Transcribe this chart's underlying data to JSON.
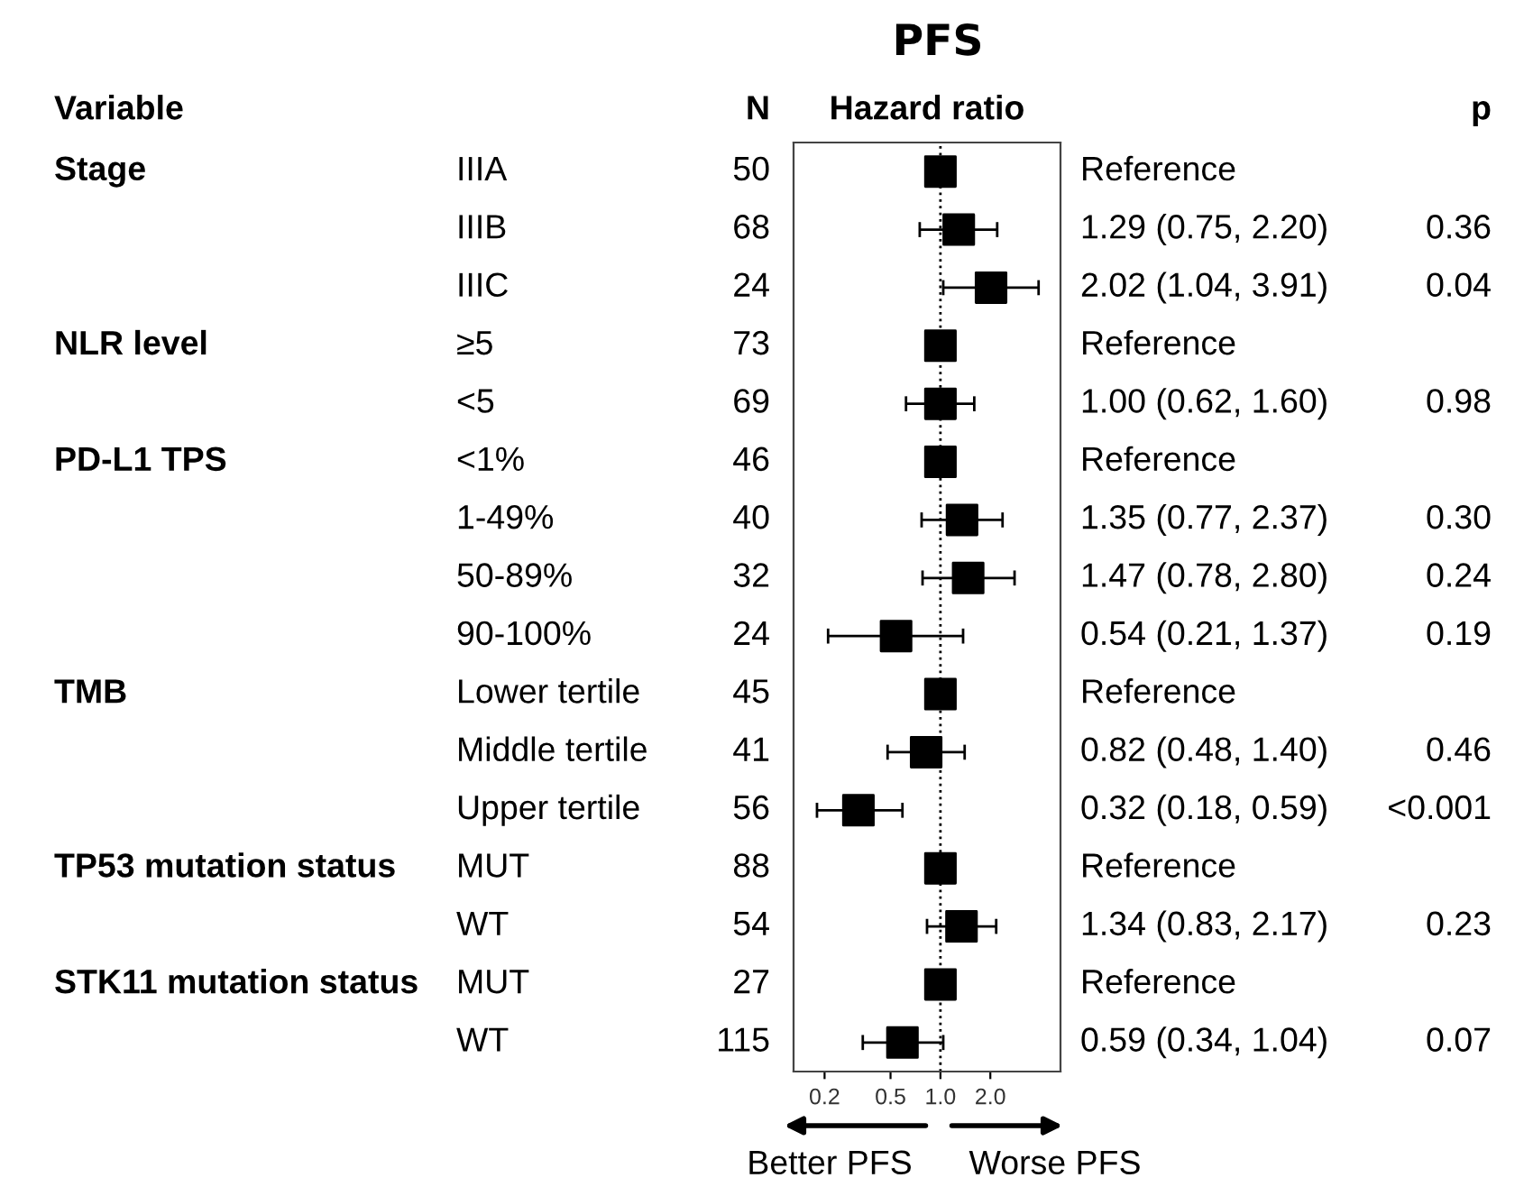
{
  "chart_data": {
    "type": "scatter",
    "orientation": "horizontal",
    "title": "PFS",
    "categories": [
      "IIIA",
      "IIIB",
      "IIIC",
      "≥5",
      "<5",
      "<1%",
      "1-49%",
      "50-89%",
      "90-100%",
      "Lower tertile",
      "Middle tertile",
      "Upper tertile",
      "MUT",
      "WT",
      "MUT",
      "WT"
    ],
    "values": [
      1,
      1.29,
      2.02,
      1,
      1.0,
      1,
      1.35,
      1.47,
      0.54,
      1,
      0.82,
      0.32,
      1,
      1.34,
      1,
      0.59
    ],
    "errors": [
      null,
      [
        0.75,
        2.2
      ],
      [
        1.04,
        3.91
      ],
      null,
      [
        0.62,
        1.6
      ],
      null,
      [
        0.77,
        2.37
      ],
      [
        0.78,
        2.8
      ],
      [
        0.21,
        1.37
      ],
      null,
      [
        0.48,
        1.4
      ],
      [
        0.18,
        0.59
      ],
      null,
      [
        0.83,
        2.17
      ],
      null,
      [
        0.34,
        1.04
      ]
    ],
    "color": "#000000",
    "marker": "square",
    "log": "x",
    "grid": false,
    "xlim": [
      0.13,
      5.3
    ],
    "xticks": [
      0.2,
      0.5,
      {
        "value": 1,
        "label": "1.0"
      },
      {
        "value": 2,
        "label": "2.0"
      }
    ],
    "ref_lines": [
      {
        "axis": "x",
        "value": 1,
        "line_style": "dotted",
        "color": "#000000"
      }
    ],
    "annotations": [
      "Variable",
      "N",
      "Hazard ratio",
      "p",
      "Better PFS",
      "Worse PFS",
      "Stage",
      "NLR level",
      "PD-L1 TPS",
      "TMB",
      "TP53 mutation status",
      "STK11 mutation status",
      "50",
      "68",
      "24",
      "73",
      "69",
      "46",
      "40",
      "32",
      "24",
      "45",
      "41",
      "56",
      "88",
      "54",
      "27",
      "115",
      "Reference",
      "1.29 (0.75, 2.20)",
      "2.02 (1.04, 3.91)",
      "Reference",
      "1.00 (0.62, 1.60)",
      "Reference",
      "1.35 (0.77, 2.37)",
      "1.47 (0.78, 2.80)",
      "0.54 (0.21, 1.37)",
      "Reference",
      "0.82 (0.48, 1.40)",
      "0.32 (0.18, 0.59)",
      "Reference",
      "1.34 (0.83, 2.17)",
      "Reference",
      "0.59 (0.34, 1.04)",
      "0.36",
      "0.04",
      "0.98",
      "0.30",
      "0.24",
      "0.19",
      "0.46",
      "<0.001",
      "0.23",
      "0.07"
    ]
  }
}
